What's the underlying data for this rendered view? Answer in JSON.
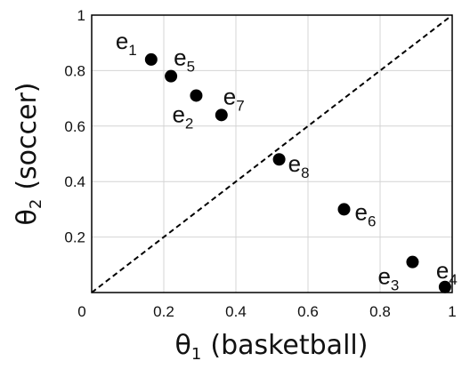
{
  "chart_data": {
    "type": "scatter",
    "title": "",
    "x_axis": {
      "symbol": "θ",
      "subscript": "1",
      "label": "(basketball)",
      "range": [
        0,
        1
      ],
      "ticks": [
        0,
        0.2,
        0.4,
        0.6,
        0.8,
        1
      ],
      "tick_labels": [
        "0",
        "0.2",
        "0.4",
        "0.6",
        "0.8",
        "1"
      ]
    },
    "y_axis": {
      "symbol": "θ",
      "subscript": "2",
      "label": "(soccer)",
      "range": [
        0,
        1
      ],
      "ticks": [
        0.2,
        0.4,
        0.6,
        0.8,
        1
      ],
      "tick_labels": [
        "0.2",
        "0.4",
        "0.6",
        "0.8",
        "1"
      ]
    },
    "grid": true,
    "reference_line": {
      "style": "dashed",
      "from": [
        0,
        0
      ],
      "to": [
        1,
        1
      ]
    },
    "points": [
      {
        "base": "e",
        "sub": "1",
        "x": 0.165,
        "y": 0.84
      },
      {
        "base": "e",
        "sub": "2",
        "x": 0.29,
        "y": 0.71
      },
      {
        "base": "e",
        "sub": "3",
        "x": 0.89,
        "y": 0.11
      },
      {
        "base": "e",
        "sub": "4",
        "x": 0.98,
        "y": 0.02
      },
      {
        "base": "e",
        "sub": "5",
        "x": 0.22,
        "y": 0.78
      },
      {
        "base": "e",
        "sub": "6",
        "x": 0.7,
        "y": 0.3
      },
      {
        "base": "e",
        "sub": "7",
        "x": 0.36,
        "y": 0.64
      },
      {
        "base": "e",
        "sub": "8",
        "x": 0.52,
        "y": 0.48
      }
    ]
  }
}
